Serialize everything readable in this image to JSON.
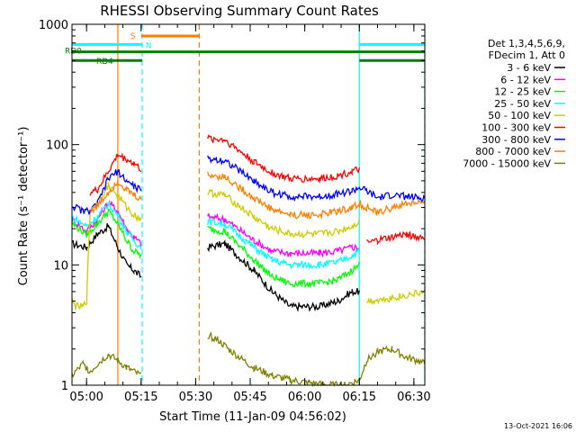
{
  "chart_data": {
    "type": "line",
    "title": "RHESSI Observing Summary Count Rates",
    "xlabel": "Start Time (11-Jan-09 04:56:02)",
    "ylabel": "Count Rate (s⁻¹ detector⁻¹)",
    "y_scale": "log",
    "ylim": [
      1,
      1000
    ],
    "xlim_minutes_after_start": [
      0,
      97
    ],
    "x_ticks": [
      {
        "label": "05:00",
        "minutes": 4
      },
      {
        "label": "05:15",
        "minutes": 19
      },
      {
        "label": "05:30",
        "minutes": 34
      },
      {
        "label": "05:45",
        "minutes": 49
      },
      {
        "label": "06:00",
        "minutes": 64
      },
      {
        "label": "06:15",
        "minutes": 79
      },
      {
        "label": "06:30",
        "minutes": 94
      }
    ],
    "y_ticks": [
      {
        "label": "1",
        "value": 1
      },
      {
        "label": "10",
        "value": 10
      },
      {
        "label": "100",
        "value": 100
      },
      {
        "label": "1000",
        "value": 1000
      }
    ],
    "legend": {
      "placement": "right",
      "header": [
        "Det 1,3,4,5,6,9,",
        "FDecim 1, Att 0"
      ]
    },
    "flags": [
      {
        "label": "S",
        "color": "#ff7f00",
        "level": 800,
        "segments": [
          [
            19,
            35
          ]
        ]
      },
      {
        "label": "N",
        "color": "#00ffff",
        "level": 680,
        "segments": [
          [
            0,
            19.3
          ],
          [
            79,
            97
          ]
        ]
      },
      {
        "label": "RD0",
        "color": "#008000",
        "level": 590,
        "segments": [
          [
            0,
            97
          ]
        ]
      },
      {
        "label": "RD4",
        "color": "#008000",
        "level": 500,
        "segments": [
          [
            0,
            19.3
          ],
          [
            79,
            97
          ]
        ]
      }
    ],
    "vertical_markers": [
      {
        "minutes": 12.6,
        "color": "#ff7f00",
        "style": "solid"
      },
      {
        "minutes": 19.3,
        "color": "#00ffff",
        "style": "dashed"
      },
      {
        "minutes": 35,
        "color": "#ff7f00",
        "style": "dashed"
      },
      {
        "minutes": 79,
        "color": "#00ffff",
        "style": "solid"
      },
      {
        "minutes": 97,
        "color": "#00ffff",
        "style": "dashed"
      }
    ],
    "gaps_minutes": [
      [
        19.5,
        37.1
      ]
    ],
    "series": [
      {
        "name": "3 - 6 keV",
        "color": "#000000",
        "points": [
          [
            0,
            15
          ],
          [
            4,
            14
          ],
          [
            7,
            18
          ],
          [
            10,
            21
          ],
          [
            12.6,
            14
          ],
          [
            15,
            10
          ],
          [
            17,
            9
          ],
          [
            19,
            8
          ],
          [
            37.3,
            14
          ],
          [
            42,
            15
          ],
          [
            50,
            9
          ],
          [
            55,
            6
          ],
          [
            60,
            4.5
          ],
          [
            68,
            4.5
          ],
          [
            73,
            5
          ],
          [
            77,
            6
          ],
          [
            79,
            6
          ]
        ]
      },
      {
        "name": "6 - 12 keV",
        "color": "#ff00ff",
        "points": [
          [
            0,
            24
          ],
          [
            4,
            19
          ],
          [
            7,
            24
          ],
          [
            10,
            33
          ],
          [
            12.6,
            28
          ],
          [
            15,
            20
          ],
          [
            17,
            17
          ],
          [
            19,
            15
          ],
          [
            37.3,
            25
          ],
          [
            42,
            24
          ],
          [
            50,
            16
          ],
          [
            55,
            13
          ],
          [
            60,
            12.5
          ],
          [
            68,
            12.5
          ],
          [
            73,
            13
          ],
          [
            77,
            14
          ],
          [
            79,
            14
          ]
        ]
      },
      {
        "name": "12 - 25 keV",
        "color": "#00ff00",
        "points": [
          [
            0,
            22
          ],
          [
            4,
            18
          ],
          [
            7,
            22
          ],
          [
            10,
            28
          ],
          [
            12.6,
            22
          ],
          [
            15,
            16
          ],
          [
            17,
            13
          ],
          [
            19,
            12
          ],
          [
            37.3,
            20
          ],
          [
            42,
            19
          ],
          [
            50,
            11
          ],
          [
            55,
            8
          ],
          [
            60,
            7
          ],
          [
            68,
            7
          ],
          [
            73,
            7.5
          ],
          [
            77,
            9
          ],
          [
            79,
            10
          ]
        ]
      },
      {
        "name": "25 - 50 keV",
        "color": "#00ffff",
        "points": [
          [
            0,
            25
          ],
          [
            4,
            21
          ],
          [
            7,
            25
          ],
          [
            10,
            32
          ],
          [
            12.6,
            26
          ],
          [
            15,
            19
          ],
          [
            17,
            16
          ],
          [
            19,
            14
          ],
          [
            37.3,
            23
          ],
          [
            42,
            22
          ],
          [
            50,
            14
          ],
          [
            55,
            11
          ],
          [
            60,
            10
          ],
          [
            68,
            10
          ],
          [
            73,
            10.5
          ],
          [
            77,
            12
          ],
          [
            79,
            13
          ]
        ]
      },
      {
        "name": "50 - 100 keV",
        "color": "#cccc00",
        "points": [
          [
            0,
            5
          ],
          [
            1,
            4.5
          ],
          [
            3,
            4.5
          ],
          [
            4,
            5
          ],
          [
            81,
            5
          ],
          [
            86,
            5.2
          ],
          [
            91,
            5.5
          ],
          [
            97,
            6
          ],
          [
            37.3,
            40
          ],
          [
            42,
            38
          ],
          [
            50,
            25
          ],
          [
            55,
            20
          ],
          [
            60,
            18
          ],
          [
            68,
            18
          ],
          [
            73,
            19
          ],
          [
            77,
            21
          ],
          [
            79,
            23
          ],
          [
            5,
            28
          ],
          [
            7,
            33
          ],
          [
            10,
            46
          ],
          [
            12.6,
            38
          ],
          [
            15,
            30
          ],
          [
            17,
            26
          ],
          [
            19,
            24
          ]
        ]
      },
      {
        "name": "100 - 300 keV",
        "color": "#ff0000",
        "points": [
          [
            5,
            40
          ],
          [
            7,
            42
          ],
          [
            10,
            60
          ],
          [
            12.6,
            82
          ],
          [
            15,
            75
          ],
          [
            17,
            70
          ],
          [
            19,
            62
          ],
          [
            37.3,
            112
          ],
          [
            42,
            110
          ],
          [
            50,
            72
          ],
          [
            55,
            58
          ],
          [
            60,
            52
          ],
          [
            68,
            52
          ],
          [
            73,
            55
          ],
          [
            77,
            60
          ],
          [
            79,
            62
          ],
          [
            81,
            15
          ],
          [
            84,
            16
          ],
          [
            88,
            17
          ],
          [
            92,
            18
          ],
          [
            95,
            17
          ],
          [
            97,
            17
          ]
        ]
      },
      {
        "name": "300 - 800 keV",
        "color": "#0000ff",
        "points": [
          [
            0,
            31
          ],
          [
            3,
            28
          ],
          [
            5,
            28
          ],
          [
            7,
            32
          ],
          [
            10,
            52
          ],
          [
            12.6,
            60
          ],
          [
            15,
            50
          ],
          [
            17,
            45
          ],
          [
            19,
            42
          ],
          [
            37.3,
            76
          ],
          [
            42,
            74
          ],
          [
            50,
            50
          ],
          [
            55,
            40
          ],
          [
            60,
            37
          ],
          [
            68,
            37
          ],
          [
            73,
            39
          ],
          [
            77,
            41
          ],
          [
            79,
            44
          ],
          [
            81,
            41
          ],
          [
            84,
            36
          ],
          [
            88,
            38
          ],
          [
            92,
            37
          ],
          [
            95,
            36
          ],
          [
            97,
            36
          ]
        ]
      },
      {
        "name": "800 - 7000 keV",
        "color": "#ff7f00",
        "points": [
          [
            5,
            28
          ],
          [
            7,
            31
          ],
          [
            10,
            40
          ],
          [
            12.6,
            50
          ],
          [
            15,
            42
          ],
          [
            17,
            38
          ],
          [
            19,
            35
          ],
          [
            37.3,
            56
          ],
          [
            42,
            54
          ],
          [
            50,
            36
          ],
          [
            55,
            29
          ],
          [
            60,
            26
          ],
          [
            68,
            26
          ],
          [
            73,
            28
          ],
          [
            77,
            30
          ],
          [
            79,
            32
          ],
          [
            81,
            30
          ],
          [
            84,
            27
          ],
          [
            88,
            30
          ],
          [
            92,
            32
          ],
          [
            95,
            33
          ],
          [
            97,
            32
          ]
        ]
      },
      {
        "name": "7000 - 15000 keV",
        "color": "#808000",
        "points": [
          [
            0,
            1.2
          ],
          [
            3,
            1.5
          ],
          [
            5,
            1.3
          ],
          [
            7,
            1.5
          ],
          [
            10,
            1.8
          ],
          [
            12.6,
            1.6
          ],
          [
            15,
            1.4
          ],
          [
            19,
            1.2
          ],
          [
            37.3,
            2.6
          ],
          [
            40,
            2.4
          ],
          [
            43,
            2.0
          ],
          [
            46,
            1.7
          ],
          [
            50,
            1.4
          ],
          [
            55,
            1.2
          ],
          [
            60,
            1.1
          ],
          [
            65,
            1.05
          ],
          [
            70,
            1.0
          ],
          [
            75,
            1.0
          ],
          [
            79,
            1.1
          ],
          [
            81,
            1.6
          ],
          [
            84,
            1.9
          ],
          [
            88,
            2.0
          ],
          [
            92,
            1.7
          ],
          [
            95,
            1.6
          ],
          [
            97,
            1.5
          ]
        ]
      }
    ]
  },
  "footer": {
    "date": "13-Oct-2021 16:06"
  }
}
